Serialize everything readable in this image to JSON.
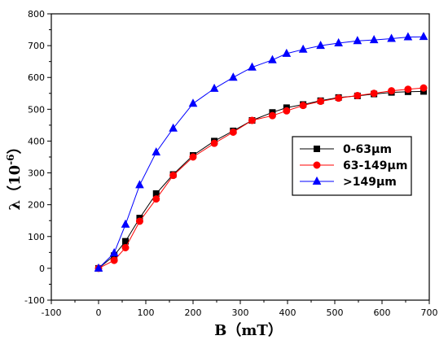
{
  "chart_data": {
    "type": "line",
    "title": "",
    "xlabel": "B（mT）",
    "ylabel": "λ（10",
    "ylabel_sup": "-6",
    "ylabel_close": "）",
    "xlim": [
      -100,
      700
    ],
    "ylim": [
      -100,
      800
    ],
    "x_ticks": [
      -100,
      0,
      100,
      200,
      300,
      400,
      500,
      600,
      700
    ],
    "y_ticks": [
      -100,
      0,
      100,
      200,
      300,
      400,
      500,
      600,
      700,
      800
    ],
    "grid": false,
    "legend_position": "center-right",
    "series": [
      {
        "name": "0-63μm",
        "color": "#000000",
        "marker": "square",
        "x": [
          0,
          33,
          57,
          87,
          122,
          158,
          200,
          245,
          285,
          325,
          368,
          398,
          433,
          470,
          508,
          548,
          583,
          620,
          655,
          688
        ],
        "y": [
          0,
          40,
          85,
          158,
          235,
          295,
          355,
          400,
          432,
          465,
          490,
          505,
          515,
          527,
          537,
          542,
          548,
          553,
          555,
          556
        ]
      },
      {
        "name": "63-149μm",
        "color": "#ff0000",
        "marker": "circle",
        "x": [
          0,
          33,
          57,
          87,
          122,
          158,
          200,
          245,
          285,
          325,
          368,
          398,
          433,
          470,
          508,
          548,
          583,
          620,
          655,
          688
        ],
        "y": [
          0,
          25,
          65,
          148,
          218,
          292,
          350,
          393,
          428,
          465,
          480,
          495,
          512,
          525,
          535,
          543,
          550,
          558,
          563,
          567
        ]
      },
      {
        "name": ">149μm",
        "color": "#0000ff",
        "marker": "triangle",
        "x": [
          0,
          33,
          57,
          87,
          122,
          158,
          200,
          245,
          285,
          325,
          368,
          398,
          433,
          470,
          508,
          548,
          583,
          620,
          655,
          688
        ],
        "y": [
          0,
          48,
          138,
          262,
          365,
          440,
          518,
          565,
          600,
          632,
          655,
          675,
          688,
          700,
          708,
          715,
          718,
          722,
          727,
          728
        ]
      }
    ]
  }
}
